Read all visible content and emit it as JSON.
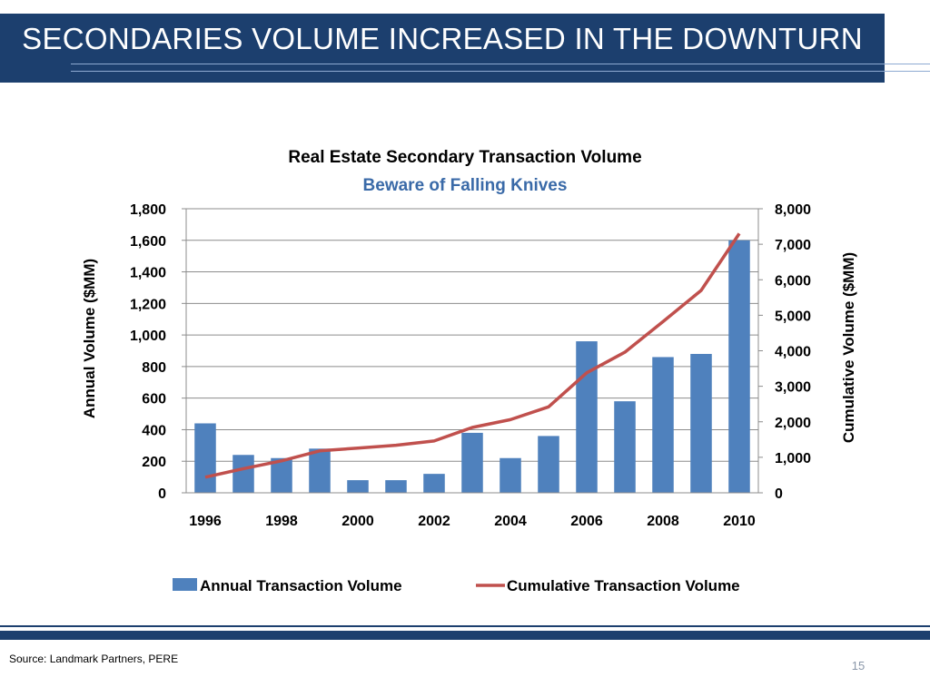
{
  "slide": {
    "title": "SECONDARIES VOLUME INCREASED IN THE DOWNTURN",
    "source": "Source: Landmark Partners, PERE",
    "page_number": "15"
  },
  "colors": {
    "title_bar": "#1c3f6e",
    "bar": "#4f81bd",
    "line": "#c0504d",
    "subtitle": "#3a6aa8",
    "accent_lines": "#8eaad2"
  },
  "chart_data": {
    "type": "bar+line",
    "title": "Real Estate Secondary Transaction Volume",
    "subtitle": "Beware of Falling Knives",
    "x": [
      1996,
      1997,
      1998,
      1999,
      2000,
      2001,
      2002,
      2003,
      2004,
      2005,
      2006,
      2007,
      2008,
      2009,
      2010
    ],
    "x_tick_labels": [
      "1996",
      "1998",
      "2000",
      "2002",
      "2004",
      "2006",
      "2008",
      "2010"
    ],
    "series": [
      {
        "name": "Annual Transaction Volume",
        "type": "bar",
        "axis": "left",
        "values": [
          440,
          240,
          220,
          280,
          80,
          80,
          120,
          380,
          220,
          360,
          960,
          580,
          860,
          880,
          1600
        ]
      },
      {
        "name": "Cumulative Transaction Volume",
        "type": "line",
        "axis": "right",
        "values": [
          440,
          680,
          900,
          1180,
          1260,
          1340,
          1460,
          1840,
          2060,
          2420,
          3380,
          3960,
          4820,
          5700,
          7300
        ]
      }
    ],
    "ylabel_left": "Annual Volume ($MM)",
    "ylabel_right": "Cumulative Volume ($MM)",
    "ylim_left": [
      0,
      1800
    ],
    "ylim_right": [
      0,
      8000
    ],
    "yticks_left": [
      "0",
      "200",
      "400",
      "600",
      "800",
      "1,000",
      "1,200",
      "1,400",
      "1,600",
      "1,800"
    ],
    "yticks_right": [
      "0",
      "1,000",
      "2,000",
      "3,000",
      "4,000",
      "5,000",
      "6,000",
      "7,000",
      "8,000"
    ],
    "grid": true,
    "legend_position": "bottom"
  }
}
